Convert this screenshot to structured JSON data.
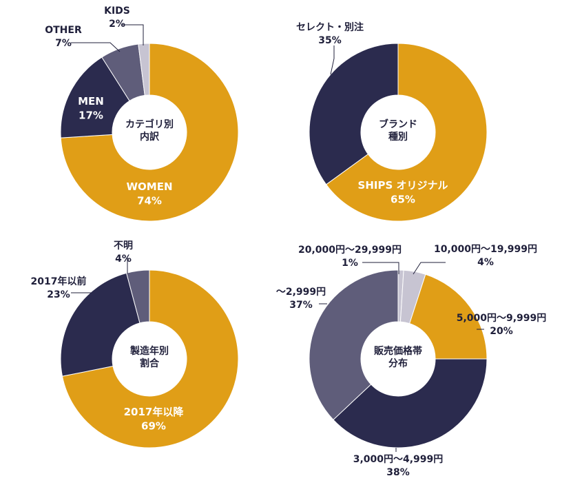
{
  "colors": {
    "gold": "#E09E17",
    "navy": "#2B2B4E",
    "slate": "#5F5D7A",
    "lilac": "#C7C4D2",
    "text": "#1F1F3A",
    "white": "#FFFFFF"
  },
  "chart_data": [
    {
      "type": "pie",
      "center_label": [
        "カテゴリ別",
        "内訳"
      ],
      "slices": [
        {
          "name": "WOMEN",
          "value": 74,
          "value_label": "74%",
          "color": "#E09E17"
        },
        {
          "name": "MEN",
          "value": 17,
          "value_label": "17%",
          "color": "#2B2B4E"
        },
        {
          "name": "OTHER",
          "value": 7,
          "value_label": "7%",
          "color": "#5F5D7A"
        },
        {
          "name": "KIDS",
          "value": 2,
          "value_label": "2%",
          "color": "#C7C4D2"
        }
      ]
    },
    {
      "type": "pie",
      "center_label": [
        "ブランド",
        "種別"
      ],
      "slices": [
        {
          "name": "SHIPS オリジナル",
          "value": 65,
          "value_label": "65%",
          "color": "#E09E17"
        },
        {
          "name": "セレクト・別注",
          "value": 35,
          "value_label": "35%",
          "color": "#2B2B4E"
        }
      ]
    },
    {
      "type": "pie",
      "center_label": [
        "製造年別",
        "割合"
      ],
      "slices": [
        {
          "name": "2017年以降",
          "value": 69,
          "value_label": "69%",
          "color": "#E09E17"
        },
        {
          "name": "2017年以前",
          "value": 23,
          "value_label": "23%",
          "color": "#2B2B4E"
        },
        {
          "name": "不明",
          "value": 4,
          "value_label": "4%",
          "color": "#5F5D7A"
        }
      ]
    },
    {
      "type": "pie",
      "center_label": [
        "販売価格帯",
        "分布"
      ],
      "slices": [
        {
          "name": "5,000円～9,999円",
          "value": 20,
          "value_label": "20%",
          "color": "#E09E17"
        },
        {
          "name": "3,000円～4,999円",
          "value": 38,
          "value_label": "38%",
          "color": "#2B2B4E"
        },
        {
          "name": "～2,999円",
          "value": 37,
          "value_label": "37%",
          "color": "#5F5D7A"
        },
        {
          "name": "20,000円～29,999円",
          "value": 1,
          "value_label": "1%",
          "color": "#C7C4D2"
        },
        {
          "name": "10,000円～19,999円",
          "value": 4,
          "value_label": "4%",
          "color": "#C7C4D2"
        }
      ]
    }
  ]
}
